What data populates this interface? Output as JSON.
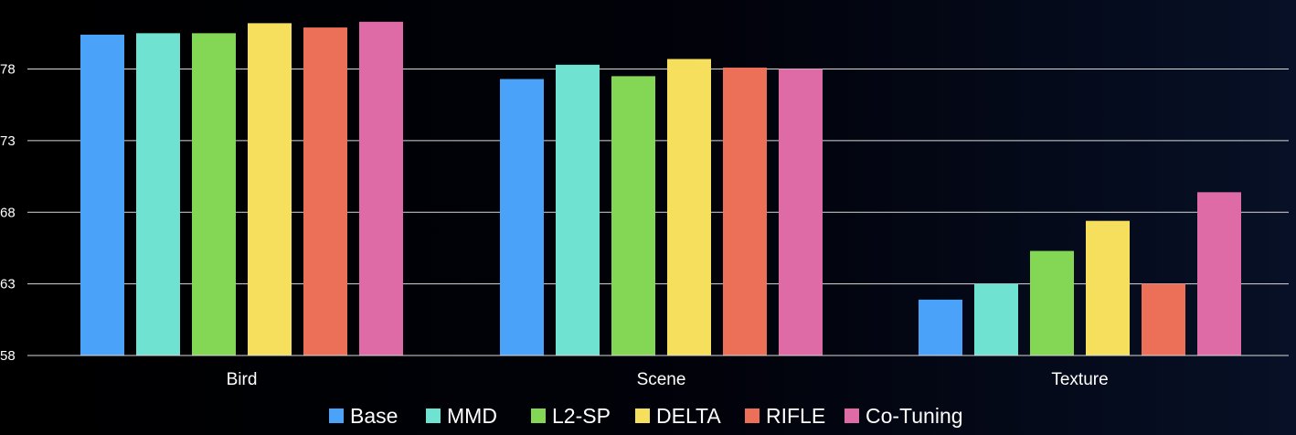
{
  "chart_data": {
    "type": "bar",
    "categories": [
      "Bird",
      "Scene",
      "Texture"
    ],
    "series": [
      {
        "name": "Base",
        "color": "#4aa3f8",
        "values": [
          80.4,
          77.3,
          61.9
        ]
      },
      {
        "name": "MMD",
        "color": "#6fe2d2",
        "values": [
          80.5,
          78.3,
          63.0
        ]
      },
      {
        "name": "L2-SP",
        "color": "#84d655",
        "values": [
          80.5,
          77.5,
          65.3
        ]
      },
      {
        "name": "DELTA",
        "color": "#f6df5d",
        "values": [
          81.2,
          78.7,
          67.4
        ]
      },
      {
        "name": "RIFLE",
        "color": "#ec6f58",
        "values": [
          80.9,
          78.1,
          63.0
        ]
      },
      {
        "name": "Co-Tuning",
        "color": "#de6aa6",
        "values": [
          81.3,
          78.0,
          69.4
        ]
      }
    ],
    "yticks": [
      58,
      63,
      68,
      73,
      78
    ],
    "ylim": [
      58,
      82.5
    ],
    "grid": true,
    "legend": "bottom",
    "title": "",
    "xlabel": "",
    "ylabel": ""
  }
}
